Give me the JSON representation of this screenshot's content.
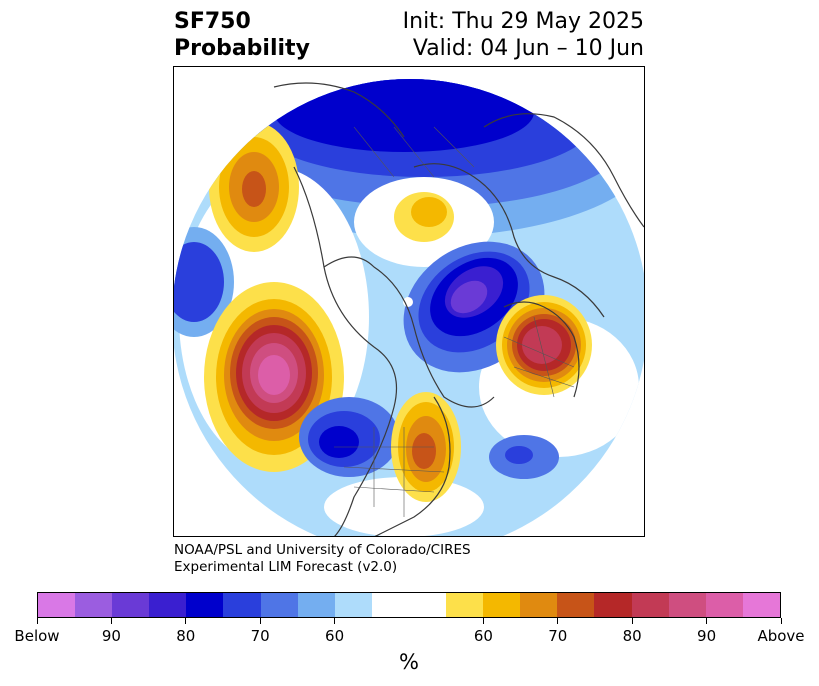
{
  "header": {
    "title_line1": "SF750",
    "title_line2": "Probability",
    "init": "Init: Thu 29 May 2025",
    "valid": "Valid: 04 Jun – 10 Jun"
  },
  "credit": {
    "line1": "NOAA/PSL and University of Colorado/CIRES",
    "line2": "Experimental LIM Forecast (v2.0)"
  },
  "colorbar": {
    "unit_label": "%",
    "segments": [
      {
        "color": "#d978e6"
      },
      {
        "color": "#9b5de0"
      },
      {
        "color": "#6a3ad6"
      },
      {
        "color": "#3a1fd0"
      },
      {
        "color": "#0000cc"
      },
      {
        "color": "#2a3fdc"
      },
      {
        "color": "#4f75e6"
      },
      {
        "color": "#74aef0"
      },
      {
        "color": "#aedcfb"
      },
      {
        "color": "#ffffff",
        "wide": true
      },
      {
        "color": "#fde04a"
      },
      {
        "color": "#f4b800"
      },
      {
        "color": "#e08a10"
      },
      {
        "color": "#c75418"
      },
      {
        "color": "#b52828"
      },
      {
        "color": "#c23a55"
      },
      {
        "color": "#cf4e80"
      },
      {
        "color": "#dc5ea8"
      },
      {
        "color": "#e677d8"
      }
    ],
    "tick_labels": [
      {
        "label": "Below",
        "frac": 0.0
      },
      {
        "label": "90",
        "frac": 0.1
      },
      {
        "label": "80",
        "frac": 0.2
      },
      {
        "label": "70",
        "frac": 0.3
      },
      {
        "label": "60",
        "frac": 0.4
      },
      {
        "label": "60",
        "frac": 0.6
      },
      {
        "label": "70",
        "frac": 0.7
      },
      {
        "label": "80",
        "frac": 0.8
      },
      {
        "label": "90",
        "frac": 0.9
      },
      {
        "label": "Above",
        "frac": 1.0
      }
    ]
  },
  "map": {
    "projection": "north-polar-stereographic",
    "below_colors": [
      "#aedcfb",
      "#74aef0",
      "#4f75e6",
      "#2a3fdc",
      "#0000cc",
      "#3a1fd0",
      "#6a3ad6"
    ],
    "above_colors": [
      "#fde04a",
      "#f4b800",
      "#e08a10",
      "#c75418",
      "#b52828",
      "#c23a55",
      "#cf4e80",
      "#dc5ea8"
    ]
  }
}
